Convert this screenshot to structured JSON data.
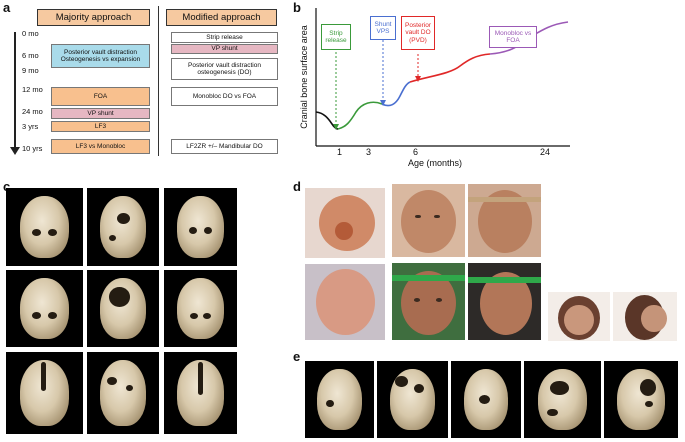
{
  "panel_a": {
    "letter": "a",
    "header_left": "Majority approach",
    "header_right": "Modified approach",
    "ages": [
      "0 mo",
      "6 mo",
      "9 mo",
      "12 mo",
      "24 mo",
      "3 yrs",
      "10 yrs"
    ],
    "majority_boxes": [
      "Posterior vault distraction\nOsteogenesis vs expansion",
      "FOA",
      "VP shunt",
      "LF3",
      "LF3 vs Monobloc"
    ],
    "modified_boxes": [
      "Strip release",
      "VP shunt",
      "Posterior vault distraction\nosteogenesis (DO)",
      "Monobloc DO vs FOA",
      "LF2ZR +/– Mandibular DO"
    ]
  },
  "panel_b": {
    "letter": "b",
    "ylabel": "Cranial bone surface area",
    "xlabel": "Age (months)",
    "ticks": [
      "1",
      "3",
      "6",
      "24"
    ],
    "annotations": [
      {
        "text": "Strip\nrelease",
        "color": "#3a9a3a"
      },
      {
        "text": "Shunt\nVPS",
        "color": "#4a6fd0"
      },
      {
        "text": "Posterior\nvault DO\n(PVD)",
        "color": "#e02828"
      },
      {
        "text": "Monobloc vs\nFOA",
        "color": "#9b59b6"
      }
    ],
    "curve_colors": [
      "#111111",
      "#3a9a3a",
      "#4a6fd0",
      "#e02828",
      "#9b59b6"
    ]
  },
  "panel_c": {
    "letter": "c"
  },
  "panel_d": {
    "letter": "d"
  },
  "panel_e": {
    "letter": "e"
  }
}
